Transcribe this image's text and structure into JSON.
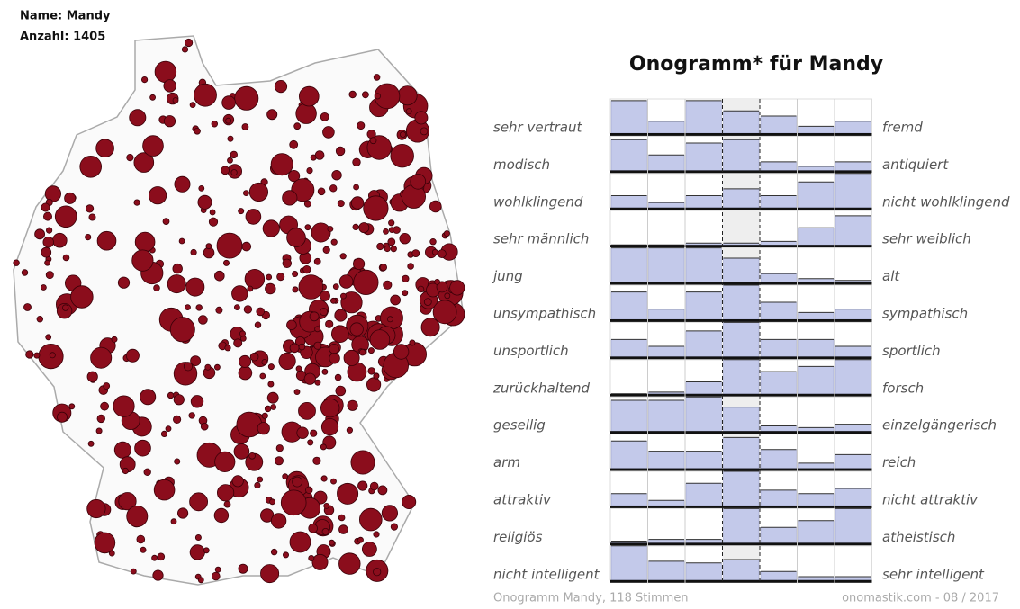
{
  "map": {
    "name_label": "Name: Mandy",
    "count_label": "Anzahl: 1405"
  },
  "chart_data": {
    "type": "onogram",
    "title": "Onogramm* für Mandy",
    "color": "#c3c9ea",
    "rows": [
      {
        "left": "sehr vertraut",
        "right": "fremd",
        "values": [
          95,
          35,
          95,
          65,
          50,
          20,
          35
        ]
      },
      {
        "left": "modisch",
        "right": "antiquiert",
        "values": [
          90,
          45,
          80,
          90,
          25,
          12,
          25
        ]
      },
      {
        "left": "wohlklingend",
        "right": "nicht wohlklingend",
        "values": [
          35,
          15,
          35,
          55,
          35,
          75,
          100
        ]
      },
      {
        "left": "sehr männlich",
        "right": "sehr weiblich",
        "values": [
          0,
          0,
          5,
          5,
          10,
          50,
          85
        ]
      },
      {
        "left": "jung",
        "right": "alt",
        "values": [
          100,
          100,
          100,
          70,
          25,
          10,
          5
        ]
      },
      {
        "left": "unsympathisch",
        "right": "sympathisch",
        "values": [
          80,
          30,
          80,
          100,
          50,
          20,
          30
        ]
      },
      {
        "left": "unsportlich",
        "right": "sportlich",
        "values": [
          50,
          30,
          75,
          100,
          50,
          50,
          30
        ]
      },
      {
        "left": "zurückhaltend",
        "right": "forsch",
        "values": [
          0,
          5,
          35,
          100,
          65,
          80,
          100
        ]
      },
      {
        "left": "gesellig",
        "right": "einzelgängerisch",
        "values": [
          90,
          90,
          100,
          70,
          15,
          10,
          20
        ]
      },
      {
        "left": "arm",
        "right": "reich",
        "values": [
          80,
          50,
          50,
          90,
          55,
          15,
          40
        ]
      },
      {
        "left": "attraktiv",
        "right": "nicht attraktiv",
        "values": [
          35,
          15,
          65,
          100,
          45,
          35,
          50
        ]
      },
      {
        "left": "religiös",
        "right": "atheistisch",
        "values": [
          5,
          10,
          10,
          100,
          45,
          65,
          100
        ]
      },
      {
        "left": "nicht intelligent",
        "right": "sehr intelligent",
        "values": [
          100,
          55,
          50,
          60,
          25,
          10,
          10
        ]
      }
    ],
    "footer_left": "Onogramm Mandy, 118 Stimmen",
    "footer_right": "onomastik.com - 08 / 2017"
  }
}
